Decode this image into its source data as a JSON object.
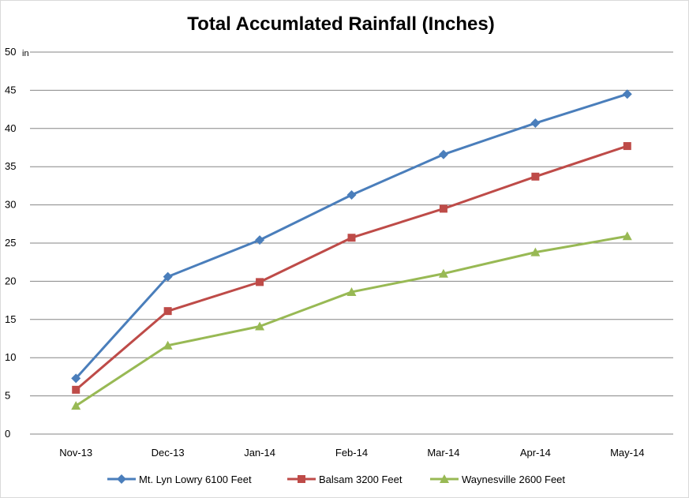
{
  "chart_data": {
    "type": "line",
    "title": "Total Accumlated Rainfall (Inches)",
    "ylabel": "",
    "xlabel": "",
    "y_unit_label": "in",
    "categories": [
      "Nov-13",
      "Dec-13",
      "Jan-14",
      "Feb-14",
      "Mar-14",
      "Apr-14",
      "May-14"
    ],
    "ylim": [
      0,
      50
    ],
    "yticks": [
      "0",
      "5",
      "10",
      "15",
      "20",
      "25",
      "30",
      "35",
      "40",
      "45",
      "50"
    ],
    "grid": true,
    "legend_position": "bottom",
    "series": [
      {
        "name": "Mt. Lyn Lowry 6100 Feet",
        "color": "#4a7ebb",
        "marker": "diamond",
        "values": [
          7.3,
          20.6,
          25.4,
          31.3,
          36.6,
          40.7,
          44.5
        ]
      },
      {
        "name": "Balsam 3200 Feet",
        "color": "#be4b48",
        "marker": "square",
        "values": [
          5.8,
          16.1,
          19.9,
          25.7,
          29.5,
          33.7,
          37.7
        ]
      },
      {
        "name": "Waynesville 2600 Feet",
        "color": "#98b954",
        "marker": "triangle",
        "values": [
          3.7,
          11.6,
          14.1,
          18.6,
          21.0,
          23.8,
          25.9
        ]
      }
    ]
  }
}
